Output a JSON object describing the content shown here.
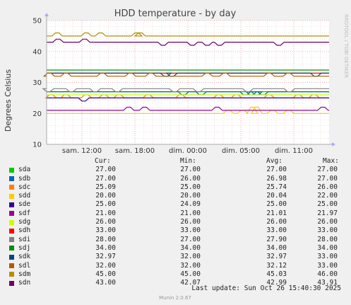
{
  "side_label": "RRDTOOL / TOBI OETIKER",
  "footer": "Munin 2.0.67",
  "last_update": "Last update: Sun Oct 26 15:40:30 2025",
  "legend_headers": {
    "cur": "Cur:",
    "min": "Min:",
    "avg": "Avg:",
    "max": "Max:"
  },
  "chart_data": {
    "type": "line",
    "title": "HDD temperature - by day",
    "ylabel": "Degrees Celsius",
    "ylim": [
      10,
      50
    ],
    "yticks": [
      10,
      20,
      30,
      40,
      50
    ],
    "x_tick_labels": [
      "sam. 12:00",
      "sam. 18:00",
      "dim. 00:00",
      "dim. 05:00",
      "dim. 11:00"
    ],
    "x_tick_hours": [
      12,
      18,
      24,
      30,
      36
    ],
    "x_range_hours": [
      8,
      40
    ],
    "grid": true,
    "series": [
      {
        "name": "sda",
        "color": "#00cc00",
        "base": 27,
        "cur": "27.00",
        "min": "27.00",
        "avg": "27.00",
        "max": "27.00",
        "bumps": []
      },
      {
        "name": "sdb",
        "color": "#0066b3",
        "base": 27,
        "cur": "27.00",
        "min": "26.00",
        "avg": "26.98",
        "max": "27.00",
        "bumps": [
          [
            23.5,
            26
          ],
          [
            25.5,
            26
          ],
          [
            30.5,
            26
          ],
          [
            31.2,
            26
          ],
          [
            31.8,
            26
          ],
          [
            32.5,
            26
          ]
        ]
      },
      {
        "name": "sdc",
        "color": "#ff8000",
        "base": 25,
        "cur": "25.09",
        "min": "25.00",
        "avg": "25.74",
        "max": "26.00",
        "bumps": [
          [
            8.5,
            26
          ],
          [
            10.2,
            26
          ],
          [
            12.5,
            26
          ],
          [
            14.5,
            26
          ],
          [
            16.2,
            26
          ],
          [
            19.5,
            26
          ],
          [
            23.2,
            26
          ],
          [
            27.5,
            26
          ],
          [
            29.5,
            26
          ],
          [
            33.2,
            26
          ],
          [
            36.5,
            26
          ],
          [
            38.3,
            26
          ]
        ]
      },
      {
        "name": "sdd",
        "color": "#ffcc00",
        "base": 20,
        "cur": "20.00",
        "min": "20.00",
        "avg": "20.04",
        "max": "22.00",
        "bumps": [
          [
            28.6,
            21
          ],
          [
            30.2,
            21
          ],
          [
            31.3,
            22
          ],
          [
            31.8,
            22
          ],
          [
            33.6,
            21
          ],
          [
            35.4,
            21
          ]
        ]
      },
      {
        "name": "sde",
        "color": "#330099",
        "base": 25,
        "cur": "25.00",
        "min": "24.09",
        "avg": "25.00",
        "max": "25.00",
        "bumps": [
          [
            12.2,
            24
          ]
        ]
      },
      {
        "name": "sdf",
        "color": "#990099",
        "base": 21,
        "cur": "21.00",
        "min": "21.00",
        "avg": "21.01",
        "max": "21.97",
        "bumps": [
          [
            17.3,
            22
          ],
          [
            19.1,
            22
          ],
          [
            27.3,
            22
          ],
          [
            39.3,
            22
          ]
        ]
      },
      {
        "name": "sdg",
        "color": "#ccff00",
        "base": 26,
        "cur": "26.00",
        "min": "26.00",
        "avg": "26.00",
        "max": "26.00",
        "bumps": []
      },
      {
        "name": "sdh",
        "color": "#ff0000",
        "base": 33,
        "cur": "33.00",
        "min": "33.00",
        "avg": "33.00",
        "max": "33.00",
        "bumps": []
      },
      {
        "name": "sdi",
        "color": "#808080",
        "base": 28,
        "cur": "28.00",
        "min": "27.00",
        "avg": "27.90",
        "max": "28.00",
        "bumps": [
          [
            8.2,
            27
          ],
          [
            10.8,
            27
          ],
          [
            13.5,
            27
          ],
          [
            16.0,
            27
          ],
          [
            22.5,
            27
          ],
          [
            25.2,
            27
          ],
          [
            30.8,
            27
          ],
          [
            35.5,
            27
          ]
        ]
      },
      {
        "name": "sdj",
        "color": "#008f00",
        "base": 34,
        "cur": "34.00",
        "min": "34.00",
        "avg": "34.00",
        "max": "34.00",
        "bumps": []
      },
      {
        "name": "sdk",
        "color": "#00487d",
        "base": 33,
        "cur": "32.97",
        "min": "32.00",
        "avg": "32.97",
        "max": "33.00",
        "bumps": [
          [
            21.5,
            32
          ],
          [
            22.2,
            32
          ],
          [
            38.5,
            32
          ]
        ]
      },
      {
        "name": "sdl",
        "color": "#b35a00",
        "base": 32,
        "cur": "32.00",
        "min": "32.00",
        "avg": "32.12",
        "max": "33.00",
        "bumps": [
          [
            8.3,
            33
          ],
          [
            10.2,
            33
          ],
          [
            14.3,
            33
          ],
          [
            17.5,
            33
          ],
          [
            19.8,
            33
          ],
          [
            26.2,
            33
          ],
          [
            28.2,
            33
          ],
          [
            33.2,
            33
          ],
          [
            35.4,
            33
          ]
        ]
      },
      {
        "name": "sdm",
        "color": "#b38f00",
        "base": 45,
        "cur": "45.00",
        "min": "45.00",
        "avg": "45.03",
        "max": "46.00",
        "bumps": [
          [
            9.2,
            46
          ],
          [
            12.5,
            46
          ],
          [
            14.1,
            46
          ],
          [
            18.2,
            46
          ],
          [
            18.6,
            46
          ]
        ]
      },
      {
        "name": "sdn",
        "color": "#6b006b",
        "base": 43,
        "cur": "43.00",
        "min": "42.07",
        "avg": "42.99",
        "max": "43.91",
        "bumps": [
          [
            9.3,
            44
          ],
          [
            12.3,
            44
          ],
          [
            21.2,
            42
          ],
          [
            24.5,
            42
          ],
          [
            26.2,
            42
          ],
          [
            27.6,
            42
          ],
          [
            34.3,
            42
          ]
        ]
      }
    ]
  }
}
